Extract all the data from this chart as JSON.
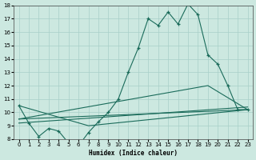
{
  "xlabel": "Humidex (Indice chaleur)",
  "bg_color": "#cce8e0",
  "grid_color": "#a8cfc8",
  "line_color": "#1a6b5a",
  "xlim": [
    -0.5,
    23.5
  ],
  "ylim": [
    8,
    18
  ],
  "xticks": [
    0,
    1,
    2,
    3,
    4,
    5,
    6,
    7,
    8,
    9,
    10,
    11,
    12,
    13,
    14,
    15,
    16,
    17,
    18,
    19,
    20,
    21,
    22,
    23
  ],
  "yticks": [
    8,
    9,
    10,
    11,
    12,
    13,
    14,
    15,
    16,
    17,
    18
  ],
  "main_series": {
    "x": [
      0,
      1,
      2,
      3,
      4,
      5,
      6,
      7,
      8,
      9,
      10,
      11,
      12,
      13,
      14,
      15,
      16,
      17,
      18,
      19,
      20,
      21,
      22,
      23
    ],
    "y": [
      10.5,
      9.2,
      8.2,
      8.8,
      8.6,
      7.7,
      7.5,
      8.5,
      9.3,
      10.0,
      11.0,
      13.0,
      14.8,
      17.0,
      16.5,
      17.5,
      16.6,
      18.1,
      17.3,
      14.3,
      13.6,
      12.0,
      10.2,
      10.2
    ]
  },
  "line1": {
    "x": [
      0,
      7,
      23
    ],
    "y": [
      10.5,
      9.0,
      10.2
    ]
  },
  "line2": {
    "x": [
      0,
      23
    ],
    "y": [
      9.5,
      10.2
    ]
  },
  "line3": {
    "x": [
      0,
      23
    ],
    "y": [
      9.2,
      10.4
    ]
  },
  "line4": {
    "x": [
      0,
      19,
      23
    ],
    "y": [
      9.5,
      12.0,
      10.2
    ]
  }
}
